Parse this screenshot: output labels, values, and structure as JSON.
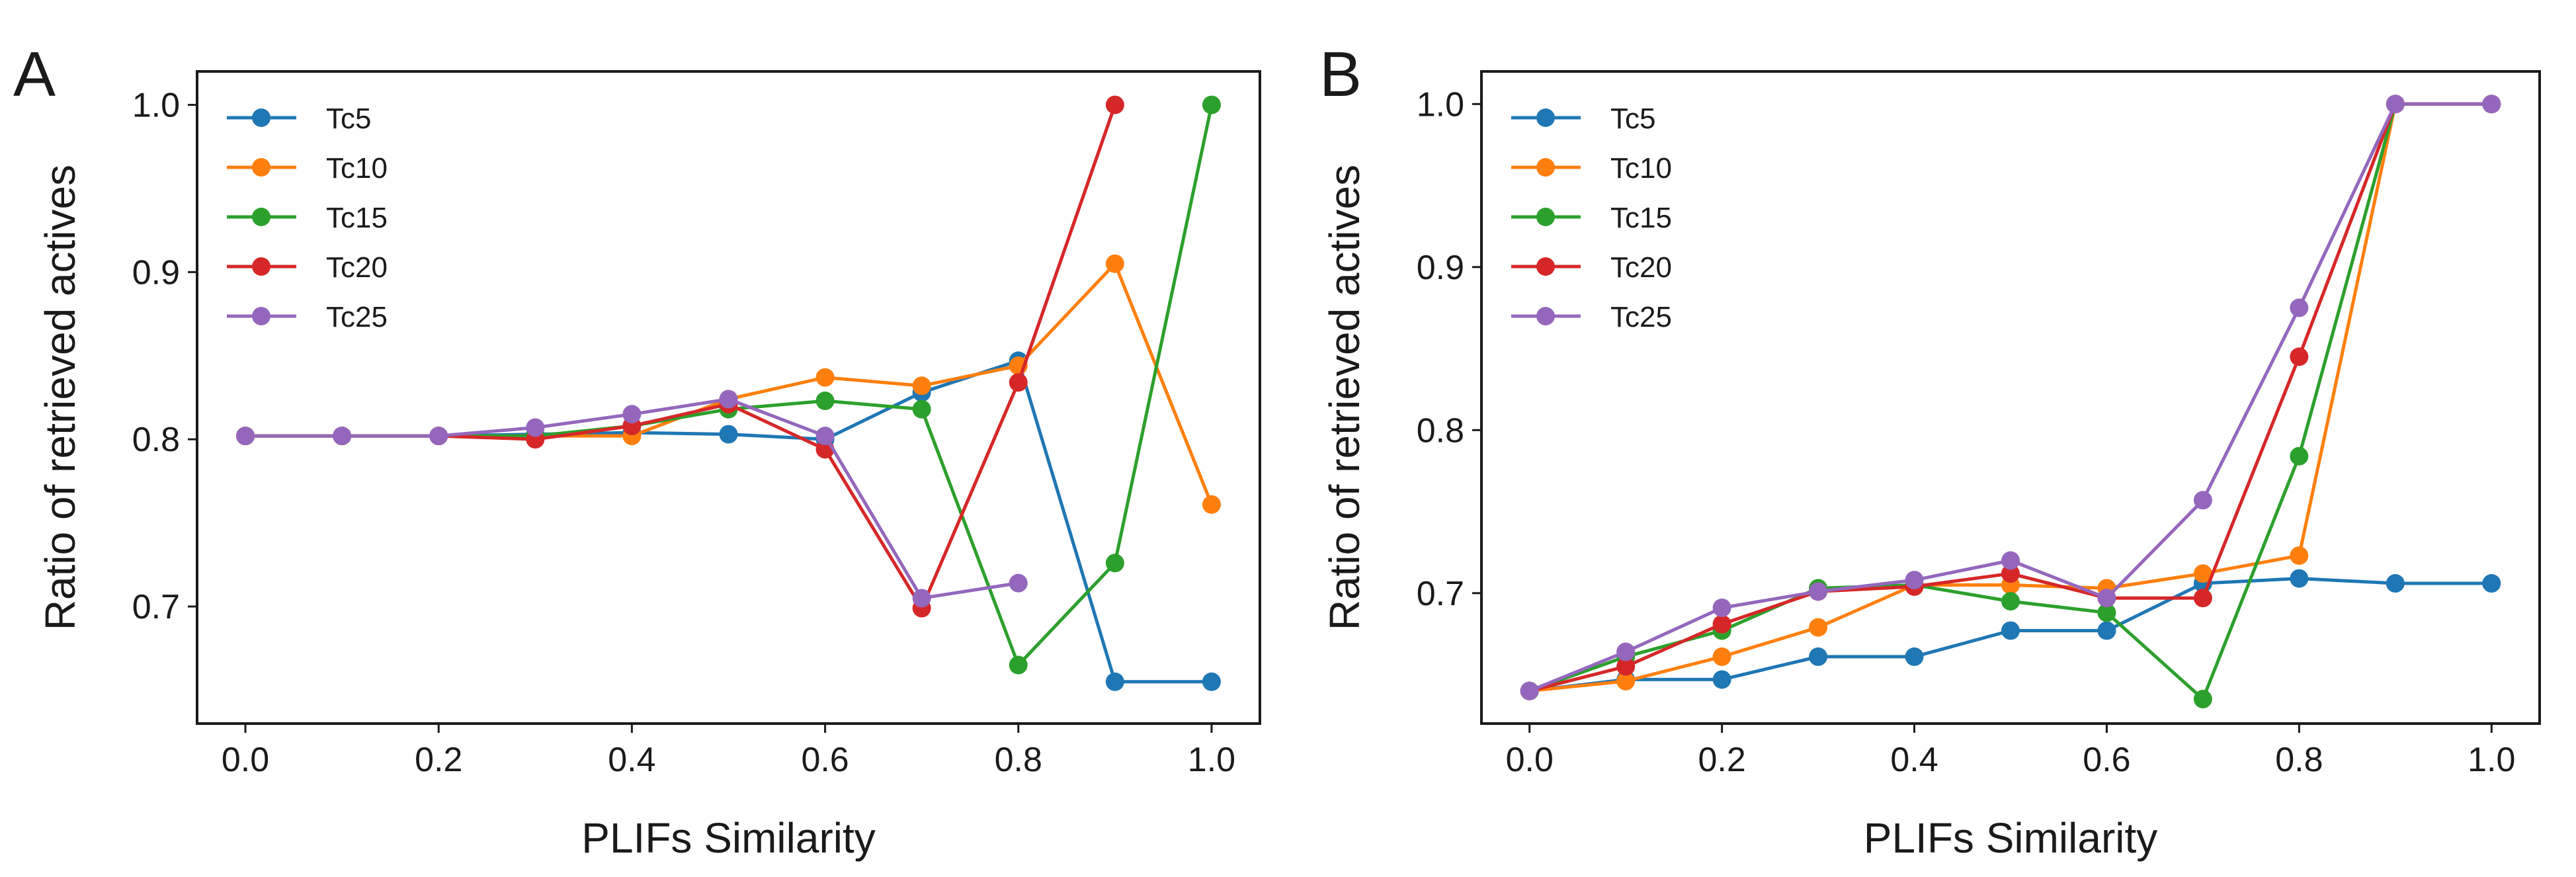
{
  "chart_data": [
    {
      "panel": "A",
      "type": "line",
      "xlabel": "PLIFs Similarity",
      "ylabel": "Ratio of retrieved actives",
      "xlim": [
        -0.05,
        1.05
      ],
      "ylim": [
        0.63,
        1.02
      ],
      "xticks": [
        0.0,
        0.2,
        0.4,
        0.6,
        0.8,
        1.0
      ],
      "xtick_labels": [
        "0.0",
        "0.2",
        "0.4",
        "0.6",
        "0.8",
        "1.0"
      ],
      "yticks": [
        0.7,
        0.8,
        0.9,
        1.0
      ],
      "ytick_labels": [
        "0.7",
        "0.8",
        "0.9",
        "1.0"
      ],
      "legend_position": "top-left",
      "series": [
        {
          "name": "Tc5",
          "color": "#1f77b4",
          "x": [
            0.0,
            0.1,
            0.2,
            0.3,
            0.4,
            0.5,
            0.6,
            0.7,
            0.8,
            0.9,
            1.0
          ],
          "y": [
            0.802,
            0.802,
            0.802,
            0.803,
            0.804,
            0.803,
            0.8,
            0.828,
            0.847,
            0.655,
            0.655
          ]
        },
        {
          "name": "Tc10",
          "color": "#ff7f0e",
          "x": [
            0.0,
            0.1,
            0.2,
            0.3,
            0.4,
            0.5,
            0.6,
            0.7,
            0.8,
            0.9,
            1.0
          ],
          "y": [
            0.802,
            0.802,
            0.802,
            0.802,
            0.802,
            0.824,
            0.837,
            0.832,
            0.844,
            0.905,
            0.761
          ]
        },
        {
          "name": "Tc15",
          "color": "#2ca02c",
          "x": [
            0.0,
            0.1,
            0.2,
            0.3,
            0.4,
            0.5,
            0.6,
            0.7,
            0.8,
            0.9,
            1.0
          ],
          "y": [
            0.802,
            0.802,
            0.802,
            0.802,
            0.808,
            0.818,
            0.823,
            0.818,
            0.665,
            0.726,
            1.0
          ]
        },
        {
          "name": "Tc20",
          "color": "#d62728",
          "x": [
            0.0,
            0.1,
            0.2,
            0.3,
            0.4,
            0.5,
            0.6,
            0.7,
            0.8,
            0.9
          ],
          "y": [
            0.802,
            0.802,
            0.802,
            0.8,
            0.808,
            0.821,
            0.794,
            0.699,
            0.834,
            1.0
          ]
        },
        {
          "name": "Tc25",
          "color": "#9467bd",
          "x": [
            0.0,
            0.1,
            0.2,
            0.3,
            0.4,
            0.5,
            0.6,
            0.7,
            0.8
          ],
          "y": [
            0.802,
            0.802,
            0.802,
            0.807,
            0.815,
            0.824,
            0.802,
            0.705,
            0.714
          ]
        }
      ]
    },
    {
      "panel": "B",
      "type": "line",
      "xlabel": "PLIFs Similarity",
      "ylabel": "Ratio of retrieved actives",
      "xlim": [
        -0.05,
        1.05
      ],
      "ylim": [
        0.62,
        1.02
      ],
      "xticks": [
        0.0,
        0.2,
        0.4,
        0.6,
        0.8,
        1.0
      ],
      "xtick_labels": [
        "0.0",
        "0.2",
        "0.4",
        "0.6",
        "0.8",
        "1.0"
      ],
      "yticks": [
        0.7,
        0.8,
        0.9,
        1.0
      ],
      "ytick_labels": [
        "0.7",
        "0.8",
        "0.9",
        "1.0"
      ],
      "legend_position": "top-left",
      "series": [
        {
          "name": "Tc5",
          "color": "#1f77b4",
          "x": [
            0.0,
            0.1,
            0.2,
            0.3,
            0.4,
            0.5,
            0.6,
            0.7,
            0.8,
            0.9,
            1.0
          ],
          "y": [
            0.64,
            0.647,
            0.647,
            0.661,
            0.661,
            0.677,
            0.677,
            0.706,
            0.709,
            0.706,
            0.706
          ]
        },
        {
          "name": "Tc10",
          "color": "#ff7f0e",
          "x": [
            0.0,
            0.1,
            0.2,
            0.3,
            0.4,
            0.5,
            0.6,
            0.7,
            0.8,
            0.9,
            1.0
          ],
          "y": [
            0.64,
            0.646,
            0.661,
            0.679,
            0.705,
            0.705,
            0.703,
            0.712,
            0.723,
            1.0,
            1.0
          ]
        },
        {
          "name": "Tc15",
          "color": "#2ca02c",
          "x": [
            0.0,
            0.1,
            0.2,
            0.3,
            0.4,
            0.5,
            0.6,
            0.7,
            0.8,
            0.9,
            1.0
          ],
          "y": [
            0.64,
            0.661,
            0.677,
            0.703,
            0.705,
            0.695,
            0.688,
            0.635,
            0.784,
            1.0,
            1.0
          ]
        },
        {
          "name": "Tc20",
          "color": "#d62728",
          "x": [
            0.0,
            0.1,
            0.2,
            0.3,
            0.4,
            0.5,
            0.6,
            0.7,
            0.8,
            0.9,
            1.0
          ],
          "y": [
            0.64,
            0.655,
            0.681,
            0.701,
            0.704,
            0.712,
            0.697,
            0.697,
            0.845,
            1.0,
            1.0
          ]
        },
        {
          "name": "Tc25",
          "color": "#9467bd",
          "x": [
            0.0,
            0.1,
            0.2,
            0.3,
            0.4,
            0.5,
            0.6,
            0.7,
            0.8,
            0.9,
            1.0
          ],
          "y": [
            0.64,
            0.664,
            0.691,
            0.701,
            0.708,
            0.72,
            0.697,
            0.757,
            0.875,
            1.0,
            1.0
          ]
        }
      ]
    }
  ]
}
